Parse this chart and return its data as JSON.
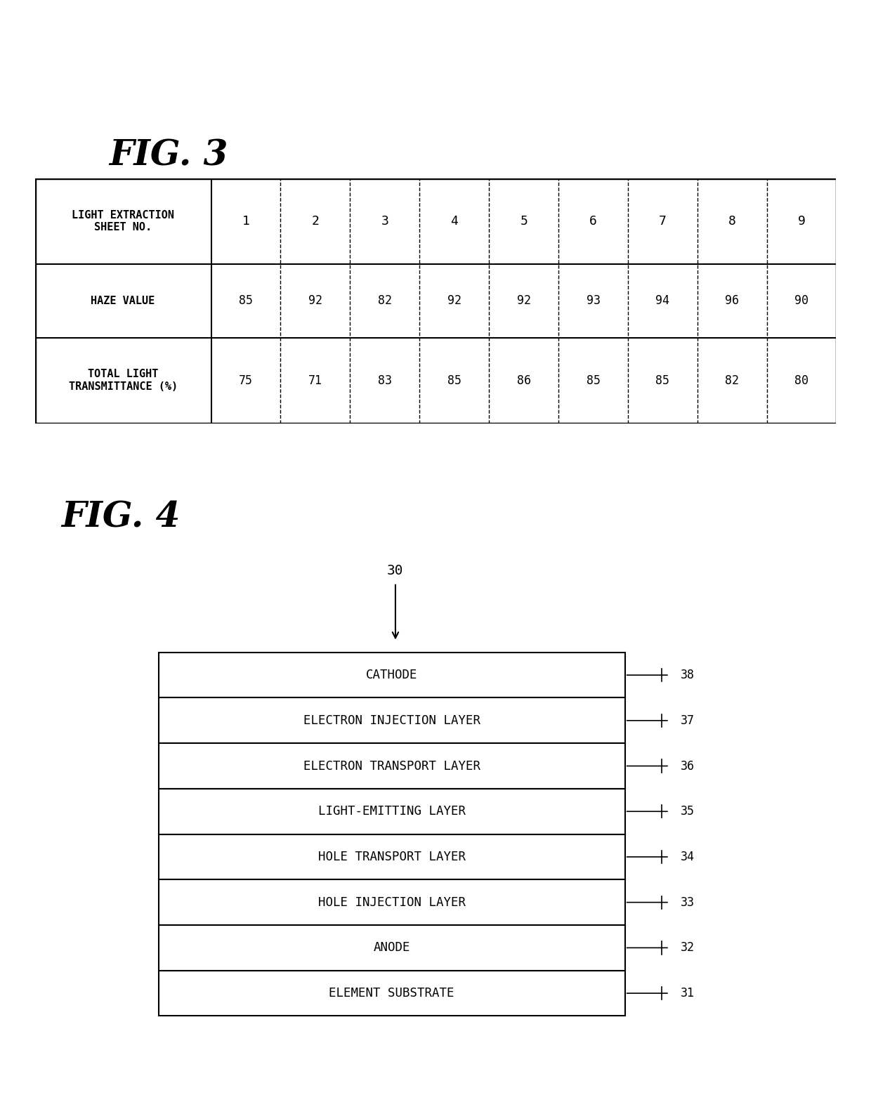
{
  "fig3_title": "FIG. 3",
  "fig4_title": "FIG. 4",
  "table_headers": [
    "LIGHT EXTRACTION\nSHEET NO.",
    "1",
    "2",
    "3",
    "4",
    "5",
    "6",
    "7",
    "8",
    "9"
  ],
  "table_row1_label": "HAZE VALUE",
  "table_row1_values": [
    "85",
    "92",
    "82",
    "92",
    "92",
    "93",
    "94",
    "96",
    "90"
  ],
  "table_row2_label": "TOTAL LIGHT\nTRANSMITTANCE (%)",
  "table_row2_values": [
    "75",
    "71",
    "83",
    "85",
    "86",
    "85",
    "85",
    "82",
    "80"
  ],
  "layers": [
    {
      "label": "CATHODE",
      "number": "38"
    },
    {
      "label": "ELECTRON INJECTION LAYER",
      "number": "37"
    },
    {
      "label": "ELECTRON TRANSPORT LAYER",
      "number": "36"
    },
    {
      "label": "LIGHT-EMITTING LAYER",
      "number": "35"
    },
    {
      "label": "HOLE TRANSPORT LAYER",
      "number": "34"
    },
    {
      "label": "HOLE INJECTION LAYER",
      "number": "33"
    },
    {
      "label": "ANODE",
      "number": "32"
    },
    {
      "label": "ELEMENT SUBSTRATE",
      "number": "31"
    }
  ],
  "component_label": "30",
  "bg_color": "#ffffff",
  "line_color": "#000000",
  "text_color": "#000000"
}
